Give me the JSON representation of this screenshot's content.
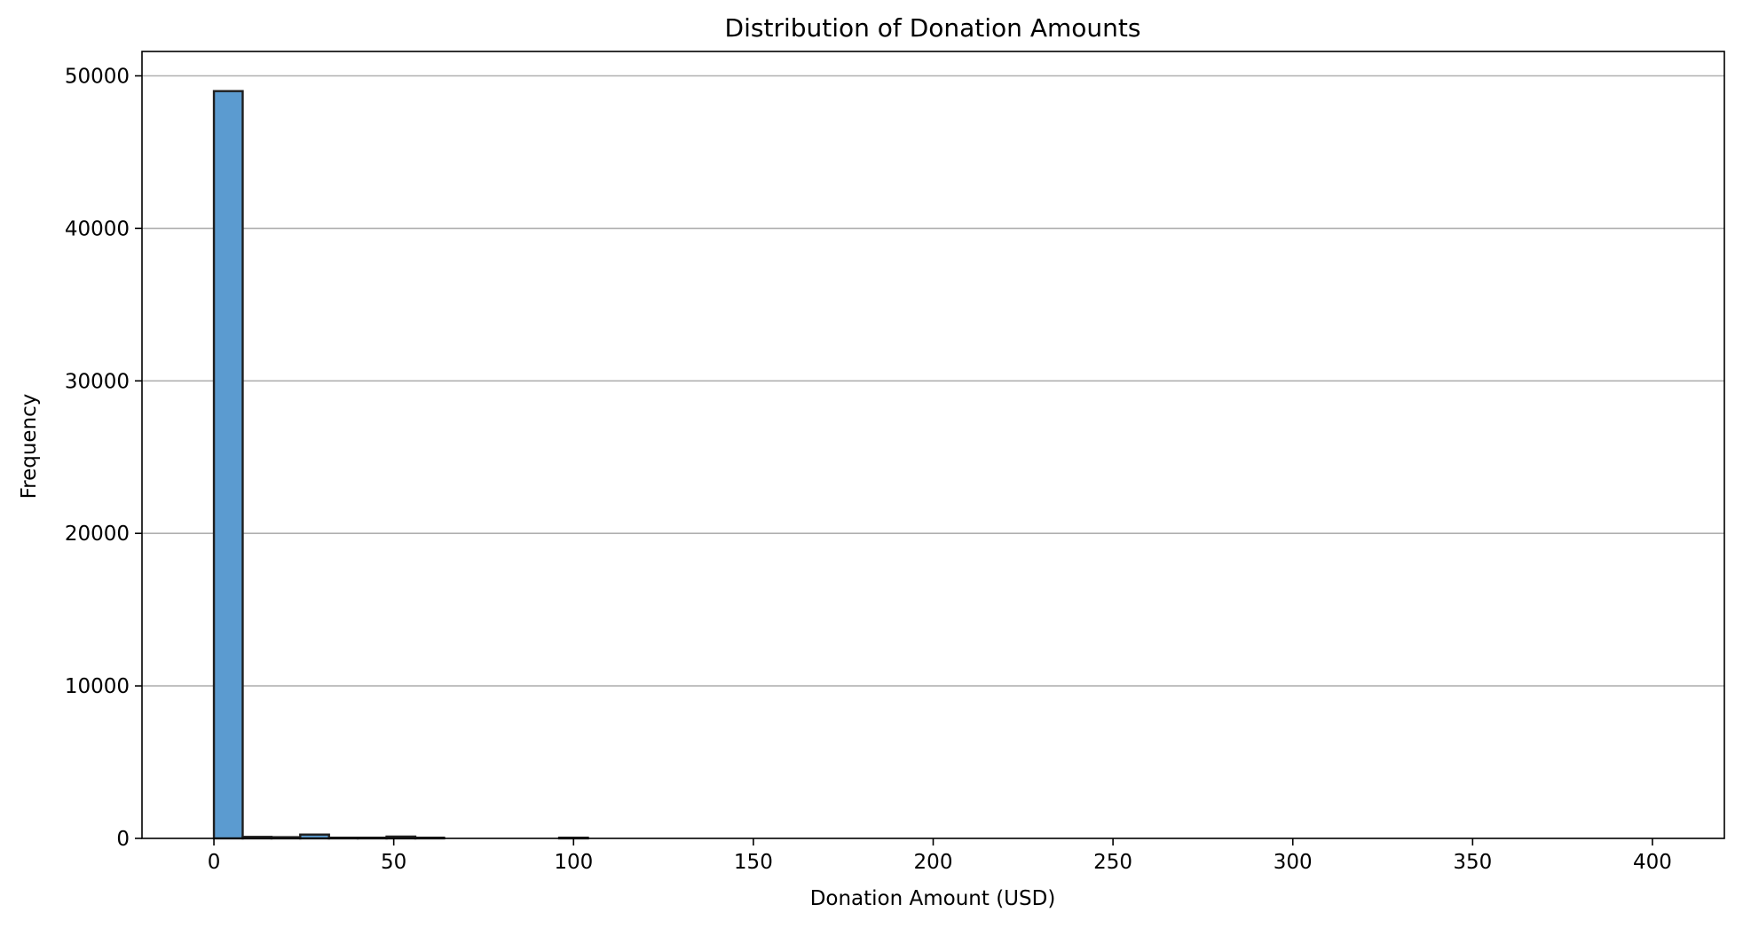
{
  "chart_data": {
    "type": "bar",
    "title": "Distribution of Donation Amounts",
    "xlabel": "Donation Amount (USD)",
    "ylabel": "Frequency",
    "xlim": [
      -20,
      420
    ],
    "ylim": [
      0,
      51600
    ],
    "x_ticks": [
      0,
      50,
      100,
      150,
      200,
      250,
      300,
      350,
      400
    ],
    "y_ticks": [
      0,
      10000,
      20000,
      30000,
      40000,
      50000
    ],
    "grid": "y-axis only",
    "bar_color": "#5b9bd0",
    "bar_edge_color": "#1f1f1f",
    "bins": [
      {
        "x0": 0,
        "x1": 8,
        "count": 49000
      },
      {
        "x0": 8,
        "x1": 16,
        "count": 100
      },
      {
        "x0": 16,
        "x1": 24,
        "count": 80
      },
      {
        "x0": 24,
        "x1": 32,
        "count": 250
      },
      {
        "x0": 32,
        "x1": 40,
        "count": 30
      },
      {
        "x0": 40,
        "x1": 48,
        "count": 10
      },
      {
        "x0": 48,
        "x1": 56,
        "count": 120
      },
      {
        "x0": 56,
        "x1": 64,
        "count": 5
      },
      {
        "x0": 96,
        "x1": 104,
        "count": 40
      }
    ]
  }
}
